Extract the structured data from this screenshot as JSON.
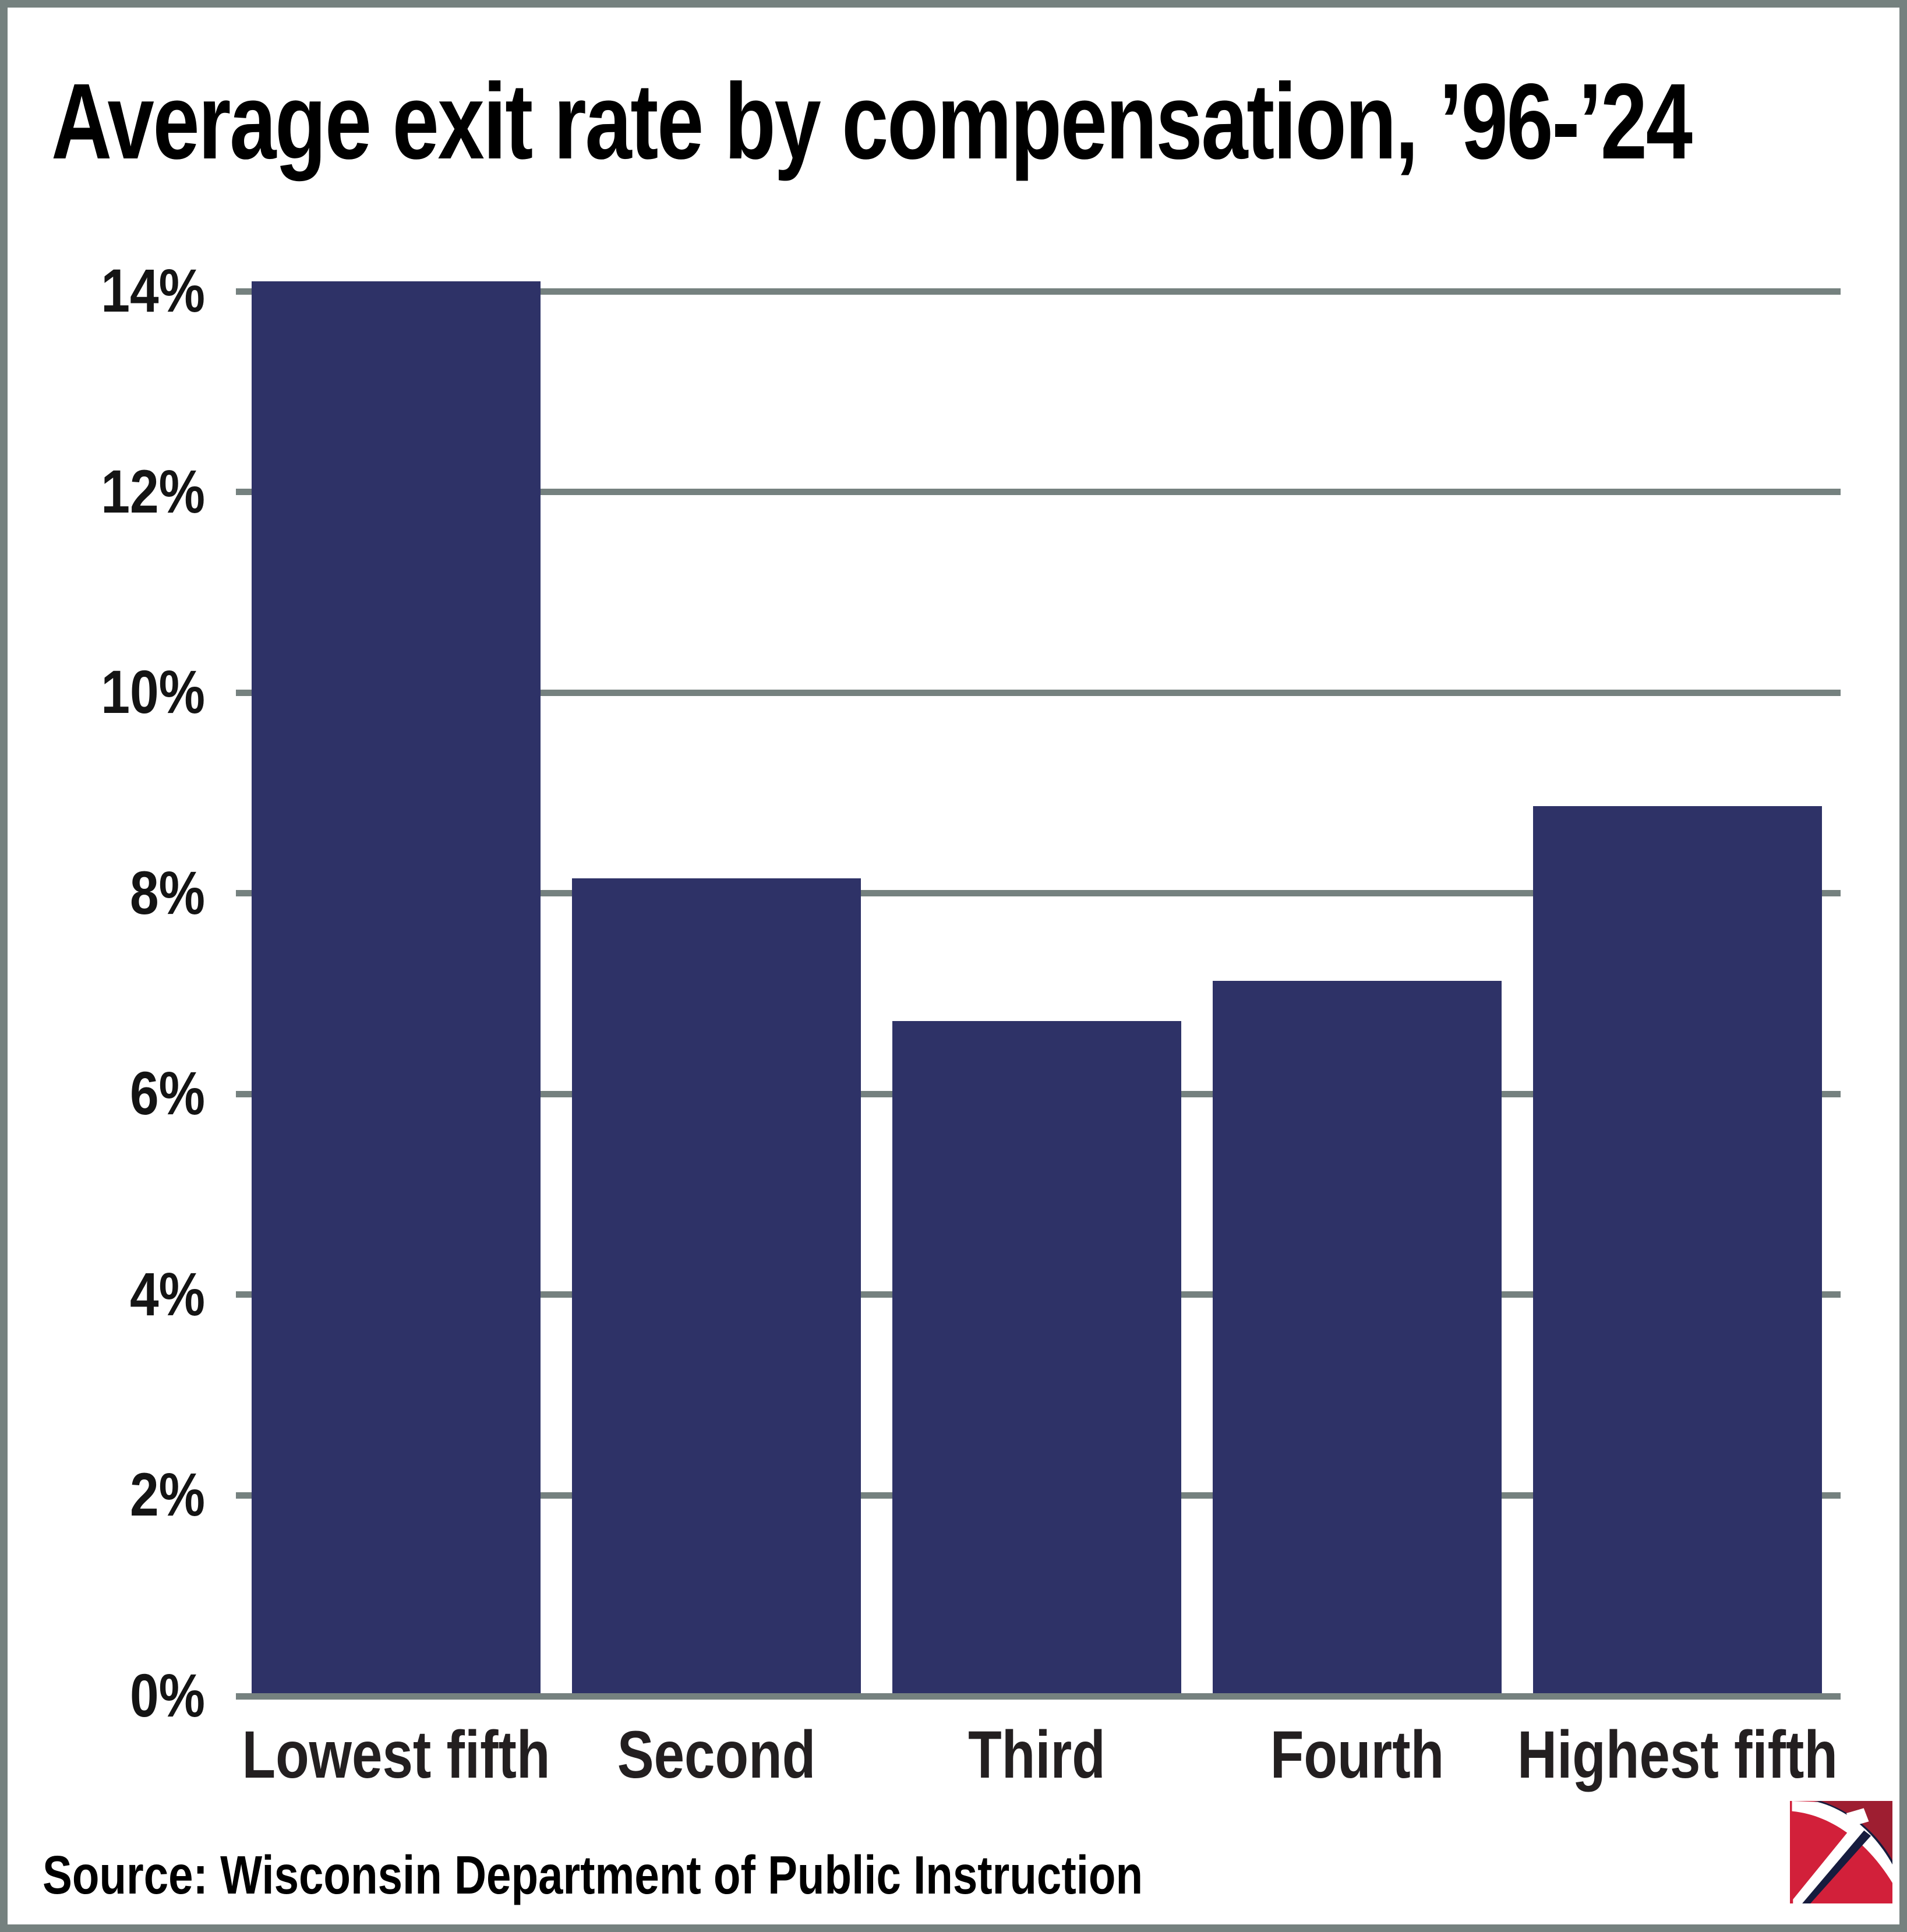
{
  "title": "Average exit rate by compensation, ’96-’24",
  "source_credit": "Source: Wisconsin Department of Public Instruction",
  "colors": {
    "bar": "#2e3267",
    "grid": "#75817f",
    "border": "#75817f",
    "title_text": "#000000",
    "axis_label_text": "#231f20",
    "logo_red": "#d2203a",
    "logo_dark_red": "#9e1e31",
    "logo_navy": "#161c3e"
  },
  "logo": {
    "name": "pickaxe-logo"
  },
  "chart_data": {
    "type": "bar",
    "title": "Average exit rate by compensation, ’96-’24",
    "categories": [
      "Lowest fifth",
      "Second",
      "Third",
      "Fourth",
      "Highest fifth"
    ],
    "values": [
      14.1,
      8.15,
      6.73,
      7.13,
      8.87
    ],
    "xlabel": "",
    "ylabel": "",
    "ylim": [
      0,
      14
    ],
    "ytick_step": 2,
    "ytick_labels": [
      "0%",
      "2%",
      "4%",
      "6%",
      "8%",
      "10%",
      "12%",
      "14%"
    ],
    "grid": true,
    "legend": false
  }
}
